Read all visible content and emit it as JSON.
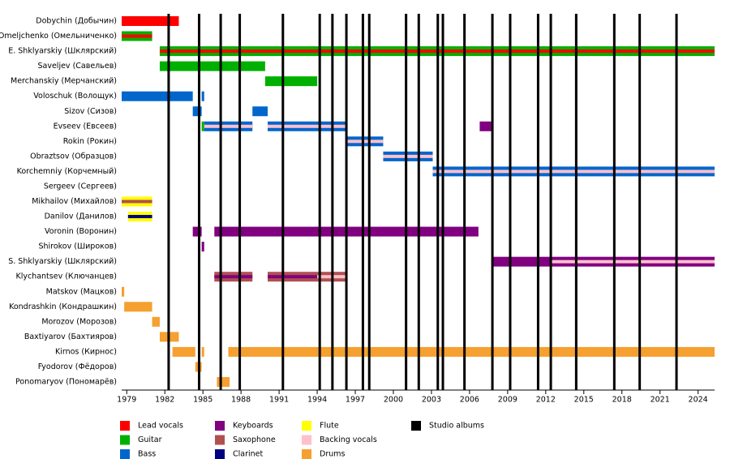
{
  "chart_data": {
    "type": "timeline",
    "xlim": [
      1978.6,
      2025.3
    ],
    "xticks": [
      1979,
      1982,
      1985,
      1988,
      1991,
      1994,
      1997,
      2000,
      2003,
      2006,
      2009,
      2012,
      2015,
      2018,
      2021,
      2024
    ],
    "legend": [
      {
        "name": "Lead vocals",
        "color": "#ff0000"
      },
      {
        "name": "Guitar",
        "color": "#00b000"
      },
      {
        "name": "Bass",
        "color": "#0066cc"
      },
      {
        "name": "Keyboards",
        "color": "#800080"
      },
      {
        "name": "Saxophone",
        "color": "#b05050"
      },
      {
        "name": "Clarinet",
        "color": "#000080"
      },
      {
        "name": "Flute",
        "color": "#ffff00"
      },
      {
        "name": "Backing vocals",
        "color": "#ffc0cb"
      },
      {
        "name": "Drums",
        "color": "#f5a030"
      },
      {
        "name": "Studio albums",
        "color": "#000000"
      }
    ],
    "albums": [
      1982.3,
      1984.7,
      1986.4,
      1987.9,
      1991.3,
      1994.2,
      1995.2,
      1996.3,
      1997.6,
      1998.1,
      2001.0,
      2002.0,
      2003.5,
      2003.9,
      2005.6,
      2007.8,
      2009.2,
      2011.4,
      2012.4,
      2014.4,
      2017.4,
      2019.4,
      2022.3
    ],
    "members": [
      {
        "name": "Dobychin (Добычин)",
        "periods": [
          {
            "start": 1978.6,
            "end": 1983.1,
            "role": "Lead vocals"
          }
        ]
      },
      {
        "name": "Omeljchenko (Омельниченко)",
        "periods": [
          {
            "start": 1978.6,
            "end": 1981.0,
            "role": "Guitar",
            "stripe": "Lead vocals"
          }
        ]
      },
      {
        "name": "E. Shklyarskiy (Шклярский)",
        "periods": [
          {
            "start": 1981.6,
            "end": 2025.3,
            "role": "Guitar",
            "stripe": "Lead vocals"
          }
        ]
      },
      {
        "name": "Saveljev (Савельев)",
        "periods": [
          {
            "start": 1981.6,
            "end": 1989.9,
            "role": "Guitar"
          }
        ]
      },
      {
        "name": "Merchanskiy (Мерчанский)",
        "periods": [
          {
            "start": 1989.9,
            "end": 1994.0,
            "role": "Guitar"
          }
        ]
      },
      {
        "name": "Voloschuk (Волощук)",
        "periods": [
          {
            "start": 1978.6,
            "end": 1984.2,
            "role": "Bass"
          },
          {
            "start": 1984.9,
            "end": 1985.1,
            "role": "Bass"
          }
        ]
      },
      {
        "name": "Sizov (Сизов)",
        "periods": [
          {
            "start": 1984.2,
            "end": 1984.9,
            "role": "Bass"
          },
          {
            "start": 1988.9,
            "end": 1990.1,
            "role": "Bass"
          }
        ]
      },
      {
        "name": "Evseev (Евсеев)",
        "periods": [
          {
            "start": 1984.9,
            "end": 1985.1,
            "role": "Guitar"
          },
          {
            "start": 1985.1,
            "end": 1988.9,
            "role": "Bass",
            "stripe": "Backing vocals"
          },
          {
            "start": 1990.1,
            "end": 1996.3,
            "role": "Bass",
            "stripe": "Backing vocals"
          },
          {
            "start": 2006.8,
            "end": 2007.7,
            "role": "Keyboards"
          }
        ]
      },
      {
        "name": "Rokin (Рокин)",
        "periods": [
          {
            "start": 1996.3,
            "end": 1999.2,
            "role": "Bass",
            "stripe": "Backing vocals"
          }
        ]
      },
      {
        "name": "Obraztsov (Образцов)",
        "periods": [
          {
            "start": 1999.2,
            "end": 2003.1,
            "role": "Bass",
            "stripe": "Backing vocals"
          }
        ]
      },
      {
        "name": "Korchemniy (Корчемный)",
        "periods": [
          {
            "start": 2003.1,
            "end": 2025.3,
            "role": "Bass",
            "stripe": "Backing vocals"
          }
        ]
      },
      {
        "name": "Sergeev (Сергеев)",
        "periods": []
      },
      {
        "name": "Mikhailov (Михайлов)",
        "periods": [
          {
            "start": 1978.6,
            "end": 1981.0,
            "role": "Flute",
            "stripe": "Saxophone"
          }
        ]
      },
      {
        "name": "Danilov (Данилов)",
        "periods": [
          {
            "start": 1979.1,
            "end": 1981.0,
            "role": "Flute",
            "stripe": "Clarinet"
          }
        ]
      },
      {
        "name": "Voronin (Воронин)",
        "periods": [
          {
            "start": 1984.2,
            "end": 1984.9,
            "role": "Keyboards"
          },
          {
            "start": 1985.9,
            "end": 2006.7,
            "role": "Keyboards"
          }
        ]
      },
      {
        "name": "Shirokov (Широков)",
        "periods": [
          {
            "start": 1984.9,
            "end": 1985.1,
            "role": "Keyboards"
          }
        ]
      },
      {
        "name": "S. Shklyarskiy (Шклярский)",
        "periods": [
          {
            "start": 2007.8,
            "end": 2012.4,
            "role": "Keyboards"
          },
          {
            "start": 2012.4,
            "end": 2025.3,
            "role": "Keyboards",
            "stripe": "Backing vocals"
          }
        ]
      },
      {
        "name": "Klychantsev (Ключанцев)",
        "periods": [
          {
            "start": 1985.9,
            "end": 1988.9,
            "role": "Saxophone",
            "stripe": "Keyboards"
          },
          {
            "start": 1990.1,
            "end": 1994.0,
            "role": "Saxophone",
            "stripe": "Keyboards"
          },
          {
            "start": 1994.0,
            "end": 1996.3,
            "role": "Saxophone",
            "stripe": "Backing vocals"
          }
        ]
      },
      {
        "name": "Matskov (Мацков)",
        "periods": [
          {
            "start": 1978.6,
            "end": 1978.8,
            "role": "Drums"
          }
        ]
      },
      {
        "name": "Kondrashkin (Кондрашкин)",
        "periods": [
          {
            "start": 1978.8,
            "end": 1981.0,
            "role": "Drums"
          }
        ]
      },
      {
        "name": "Morozov (Морозов)",
        "periods": [
          {
            "start": 1981.0,
            "end": 1981.6,
            "role": "Drums"
          }
        ]
      },
      {
        "name": "Baxtiyarov (Бахтияров)",
        "periods": [
          {
            "start": 1981.6,
            "end": 1983.1,
            "role": "Drums"
          }
        ]
      },
      {
        "name": "Kirnos (Кирнос)",
        "periods": [
          {
            "start": 1982.6,
            "end": 1984.4,
            "role": "Drums"
          },
          {
            "start": 1984.9,
            "end": 1985.1,
            "role": "Drums"
          },
          {
            "start": 1987.0,
            "end": 2025.3,
            "role": "Drums"
          }
        ]
      },
      {
        "name": "Fyodorov (Фёдоров)",
        "periods": [
          {
            "start": 1984.4,
            "end": 1984.9,
            "role": "Drums"
          }
        ]
      },
      {
        "name": "Ponomaryov (Пономарёв)",
        "periods": [
          {
            "start": 1986.1,
            "end": 1987.1,
            "role": "Drums"
          }
        ]
      }
    ]
  }
}
